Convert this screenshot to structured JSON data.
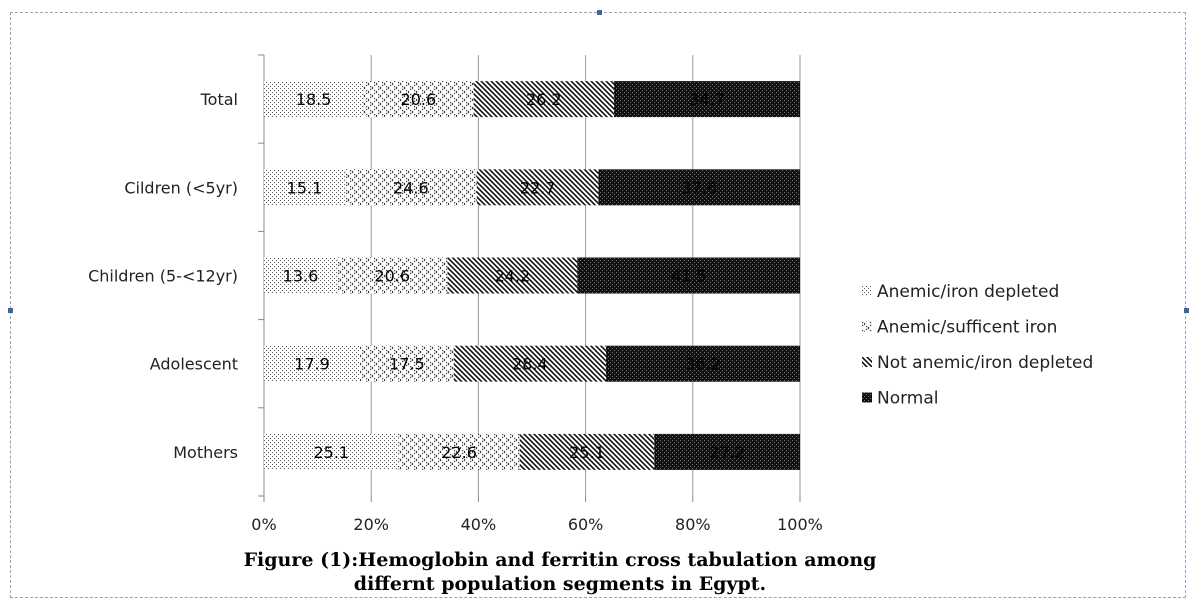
{
  "chart_data": {
    "type": "bar",
    "stacked": true,
    "orientation": "horizontal",
    "percent_stacked": true,
    "categories": [
      "Total",
      "Cildren (<5yr)",
      "Children (5-<12yr)",
      "Adolescent",
      "Mothers"
    ],
    "series": [
      {
        "name": "Anemic/iron depleted",
        "values": [
          18.5,
          15.1,
          13.6,
          17.9,
          25.1
        ]
      },
      {
        "name": "Anemic/sufficent iron",
        "values": [
          20.6,
          24.6,
          20.6,
          17.5,
          22.6
        ]
      },
      {
        "name": "Not anemic/iron depleted",
        "values": [
          26.2,
          22.7,
          24.2,
          28.4,
          25.1
        ]
      },
      {
        "name": "Normal",
        "values": [
          34.7,
          37.6,
          41.5,
          36.2,
          27.2
        ]
      }
    ],
    "xlim": [
      0,
      100
    ],
    "xticks": [
      "0%",
      "20%",
      "40%",
      "60%",
      "80%",
      "100%"
    ],
    "grid": true,
    "legend": "right",
    "title": "Figure (1):Hemoglobin and ferritin cross tabulation among differnt population segments in Egypt."
  }
}
